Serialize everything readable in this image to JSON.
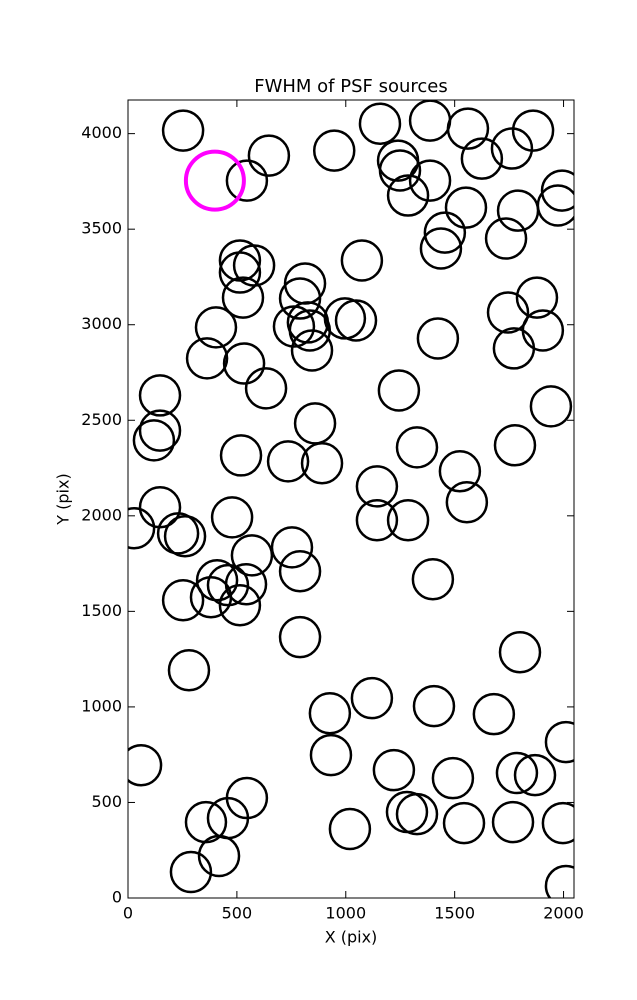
{
  "chart_data": {
    "type": "scatter",
    "title": "FWHM of PSF sources",
    "x_label": "X (pix)",
    "y_label": "Y (pix)",
    "xlim": [
      0,
      2048
    ],
    "ylim": [
      0,
      4176
    ],
    "xticks": [
      0,
      500,
      1000,
      1500,
      2000
    ],
    "yticks": [
      0,
      500,
      1000,
      1500,
      2000,
      2500,
      3000,
      3500,
      4000
    ],
    "series": [
      {
        "color": "#000000",
        "x": [
          253,
          647,
          546,
          947,
          1157,
          1387,
          1561,
          1860,
          1763,
          1625,
          1240,
          1249,
          1387,
          1286,
          1552,
          1993,
          1974,
          1791,
          1736,
          1455,
          1437,
          514,
          579,
          514,
          528,
          1074,
          813,
          790,
          1878,
          1745,
          1905,
          404,
          762,
          826,
          835,
          845,
          996,
          1047,
          1423,
          1772,
          363,
          533,
          634,
          147,
          1244,
          1942,
          859,
          147,
          119,
          1327,
          1777,
          519,
          735,
          891,
          1524,
          1143,
          1556,
          147,
          478,
          1143,
          1286,
          28,
          230,
          262,
          753,
          790,
          569,
          409,
          459,
          542,
          1400,
          381,
          253,
          514,
          790,
          1800,
          280,
          1120,
          1405,
          927,
          1680,
          2011,
          60,
          932,
          1221,
          1492,
          1786,
          1869,
          546,
          459,
          358,
          1281,
          1327,
          1543,
          1768,
          1997,
          1019,
          418,
          289,
          2011
        ],
        "values": [
          4016,
          3885,
          3754,
          3911,
          4052,
          4068,
          4026,
          4016,
          3922,
          3869,
          3859,
          3807,
          3754,
          3676,
          3613,
          3702,
          3624,
          3597,
          3451,
          3482,
          3399,
          3336,
          3310,
          3273,
          3142,
          3336,
          3216,
          3137,
          3142,
          3064,
          2970,
          2986,
          2991,
          3012,
          2970,
          2865,
          3033,
          3022,
          2928,
          2876,
          2824,
          2797,
          2667,
          2630,
          2656,
          2573,
          2484,
          2446,
          2395,
          2358,
          2369,
          2316,
          2285,
          2275,
          2233,
          2154,
          2071,
          2045,
          1992,
          1977,
          1977,
          1935,
          1908,
          1893,
          1835,
          1710,
          1793,
          1663,
          1637,
          1642,
          1668,
          1574,
          1558,
          1532,
          1365,
          1286,
          1192,
          1046,
          1004,
          967,
          962,
          816,
          695,
          748,
          669,
          627,
          654,
          643,
          523,
          418,
          397,
          450,
          439,
          392,
          397,
          392,
          361,
          220,
          136,
          63
        ]
      },
      {
        "color": "#ff00ff",
        "x": [
          399
        ],
        "values": [
          3754
        ]
      }
    ]
  }
}
